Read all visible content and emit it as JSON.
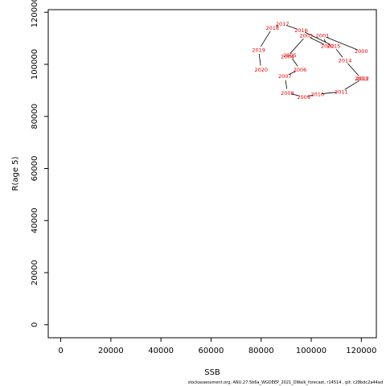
{
  "chart_data": {
    "type": "line",
    "xlabel": "SSB",
    "ylabel": "R(age 5)",
    "xlim": [
      -5000,
      126000
    ],
    "ylim": [
      -5000,
      121000
    ],
    "x_ticks": [
      0,
      20000,
      40000,
      60000,
      80000,
      100000,
      120000
    ],
    "y_ticks": [
      0,
      20000,
      40000,
      60000,
      80000,
      100000,
      120000
    ],
    "label_color": "#e00000",
    "line_color": "#000000",
    "points": [
      {
        "year": "2000",
        "x": 120000,
        "y": 105000
      },
      {
        "year": "2001",
        "x": 104500,
        "y": 111000
      },
      {
        "year": "2002",
        "x": 106500,
        "y": 107000
      },
      {
        "year": "2003",
        "x": 98000,
        "y": 111000
      },
      {
        "year": "2004",
        "x": 90500,
        "y": 103000
      },
      {
        "year": "2005",
        "x": 91500,
        "y": 103500
      },
      {
        "year": "2006",
        "x": 95500,
        "y": 98000
      },
      {
        "year": "2007",
        "x": 89500,
        "y": 95500
      },
      {
        "year": "2008",
        "x": 90500,
        "y": 89000
      },
      {
        "year": "2009",
        "x": 97000,
        "y": 87500
      },
      {
        "year": "2010",
        "x": 102500,
        "y": 88500
      },
      {
        "year": "2011",
        "x": 112000,
        "y": 89500
      },
      {
        "year": "2012",
        "x": 120500,
        "y": 94500
      },
      {
        "year": "2013",
        "x": 120000,
        "y": 94500
      },
      {
        "year": "2014",
        "x": 113500,
        "y": 101500
      },
      {
        "year": "2015",
        "x": 109000,
        "y": 107000
      },
      {
        "year": "2016",
        "x": 96000,
        "y": 113000
      },
      {
        "year": "2017",
        "x": 88500,
        "y": 115500
      },
      {
        "year": "2018",
        "x": 84500,
        "y": 114000
      },
      {
        "year": "2019",
        "x": 79000,
        "y": 105500
      },
      {
        "year": "2020",
        "x": 80000,
        "y": 98000
      }
    ]
  },
  "footer": "stockassessment.org,  ANU.27.5b6a_WGDEEP_2021_DWalk_forecast, r14514 ,  git: c28bdc2a44ad"
}
